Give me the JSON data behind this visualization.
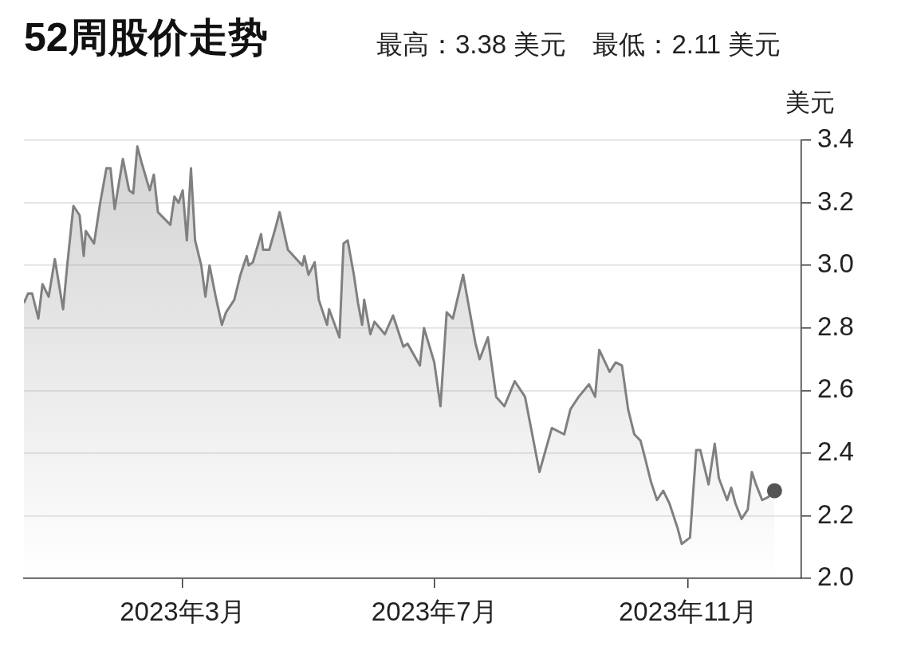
{
  "chart_data": {
    "type": "area",
    "title": "52周股价走势",
    "subtitle": "最高：3.38 美元　最低：2.11 美元",
    "ylabel": "美元",
    "xlim": [
      "2022-12-14",
      "2023-12-26"
    ],
    "xticks": [
      {
        "value": "2023-03-01",
        "label": "2023年3月"
      },
      {
        "value": "2023-07-01",
        "label": "2023年7月"
      },
      {
        "value": "2023-11-01",
        "label": "2023年11月"
      }
    ],
    "ylim": [
      2,
      3.4
    ],
    "yticks": [
      {
        "value": 2,
        "label": "2.0"
      },
      2.2,
      2.4,
      2.6,
      2.8,
      {
        "value": 3,
        "label": "3.0"
      },
      3.2,
      3.4
    ],
    "grid": "y",
    "marker": "none",
    "series": [
      {
        "color": "#808080",
        "x": [
          "2022-12-14",
          "2022-12-16",
          "2022-12-18",
          "2022-12-21",
          "2022-12-23",
          "2022-12-26",
          "2022-12-29",
          "2023-01-02",
          "2023-01-04",
          "2023-01-07",
          "2023-01-10",
          "2023-01-12",
          "2023-01-13",
          "2023-01-17",
          "2023-01-20",
          "2023-01-23",
          "2023-01-25",
          "2023-01-27",
          "2023-01-31",
          "2023-02-03",
          "2023-02-05",
          "2023-02-07",
          "2023-02-09",
          "2023-02-13",
          "2023-02-15",
          "2023-02-17",
          "2023-02-23",
          "2023-02-25",
          "2023-02-27",
          "2023-03-01",
          "2023-03-03",
          "2023-03-05",
          "2023-03-07",
          "2023-03-10",
          "2023-03-12",
          "2023-03-14",
          "2023-03-17",
          "2023-03-20",
          "2023-03-22",
          "2023-03-26",
          "2023-03-29",
          "2023-04-01",
          "2023-04-02",
          "2023-04-04",
          "2023-04-08",
          "2023-04-09",
          "2023-04-12",
          "2023-04-15",
          "2023-04-17",
          "2023-04-21",
          "2023-04-28",
          "2023-04-29",
          "2023-05-01",
          "2023-05-04",
          "2023-05-06",
          "2023-05-10",
          "2023-05-11",
          "2023-05-16",
          "2023-05-18",
          "2023-05-20",
          "2023-05-23",
          "2023-05-25",
          "2023-05-27",
          "2023-05-28",
          "2023-05-31",
          "2023-06-02",
          "2023-06-07",
          "2023-06-11",
          "2023-06-16",
          "2023-06-18",
          "2023-06-24",
          "2023-06-26",
          "2023-07-01",
          "2023-07-04",
          "2023-07-07",
          "2023-07-10",
          "2023-07-15",
          "2023-07-18",
          "2023-07-21",
          "2023-07-23",
          "2023-07-27",
          "2023-07-31",
          "2023-08-04",
          "2023-08-09",
          "2023-08-14",
          "2023-08-21",
          "2023-08-27",
          "2023-09-02",
          "2023-09-05",
          "2023-09-09",
          "2023-09-14",
          "2023-09-17",
          "2023-09-19",
          "2023-09-24",
          "2023-09-27",
          "2023-09-30",
          "2023-10-03",
          "2023-10-06",
          "2023-10-09",
          "2023-10-11",
          "2023-10-14",
          "2023-10-17",
          "2023-10-20",
          "2023-10-23",
          "2023-10-27",
          "2023-10-29",
          "2023-11-02",
          "2023-11-05",
          "2023-11-07",
          "2023-11-11",
          "2023-11-14",
          "2023-11-16",
          "2023-11-20",
          "2023-11-22",
          "2023-11-24",
          "2023-11-27",
          "2023-11-30",
          "2023-12-02",
          "2023-12-04",
          "2023-12-07",
          "2023-12-10",
          "2023-12-13"
        ],
        "values": [
          2.88,
          2.91,
          2.91,
          2.83,
          2.94,
          2.9,
          3.02,
          2.86,
          3.0,
          3.19,
          3.16,
          3.03,
          3.11,
          3.07,
          3.2,
          3.31,
          3.31,
          3.18,
          3.34,
          3.24,
          3.23,
          3.38,
          3.33,
          3.24,
          3.29,
          3.17,
          3.13,
          3.22,
          3.2,
          3.24,
          3.08,
          3.31,
          3.08,
          3.0,
          2.9,
          3.0,
          2.9,
          2.81,
          2.85,
          2.89,
          2.97,
          3.03,
          3.0,
          3.01,
          3.1,
          3.05,
          3.05,
          3.12,
          3.17,
          3.05,
          3.0,
          3.03,
          2.97,
          3.01,
          2.89,
          2.81,
          2.86,
          2.77,
          3.07,
          3.08,
          2.97,
          2.88,
          2.81,
          2.89,
          2.78,
          2.82,
          2.78,
          2.84,
          2.74,
          2.75,
          2.68,
          2.8,
          2.69,
          2.55,
          2.85,
          2.83,
          2.97,
          2.86,
          2.75,
          2.7,
          2.77,
          2.58,
          2.55,
          2.63,
          2.58,
          2.34,
          2.48,
          2.46,
          2.54,
          2.58,
          2.62,
          2.58,
          2.73,
          2.66,
          2.69,
          2.68,
          2.54,
          2.46,
          2.44,
          2.39,
          2.31,
          2.25,
          2.28,
          2.24,
          2.16,
          2.11,
          2.13,
          2.41,
          2.41,
          2.3,
          2.43,
          2.32,
          2.25,
          2.29,
          2.24,
          2.19,
          2.22,
          2.34,
          2.3,
          2.25,
          2.26,
          2.28
        ]
      },
      {
        "type": "scatter",
        "color": "#555555",
        "marker": "circle",
        "x": [
          "2023-12-13"
        ],
        "values": [
          2.28
        ]
      }
    ]
  }
}
